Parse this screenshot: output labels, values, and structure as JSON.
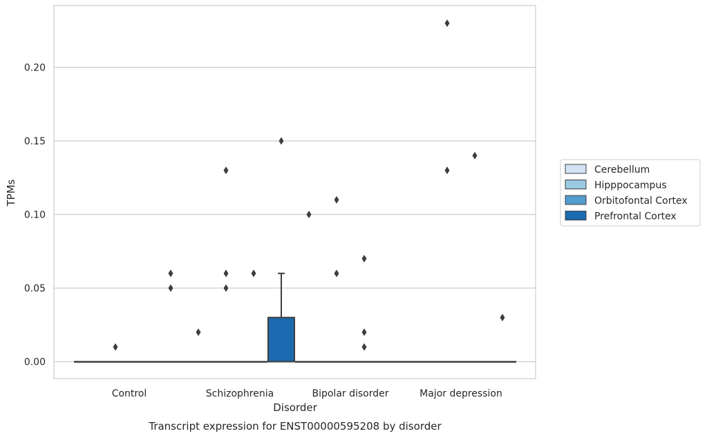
{
  "chart_data": {
    "type": "box",
    "title": "",
    "caption": "Transcript expression for ENST00000595208 by disorder",
    "xlabel": "Disorder",
    "ylabel": "TPMs",
    "ylim": [
      -0.011,
      0.2415
    ],
    "yticks": [
      "0.00",
      "0.05",
      "0.10",
      "0.15",
      "0.20"
    ],
    "grid": "horizontal",
    "legend_position": "right",
    "categories": [
      "Control",
      "Schizophrenia",
      "Bipolar disorder",
      "Major depression"
    ],
    "series": [
      {
        "name": "Cerebellum",
        "color": "#d2e3f3"
      },
      {
        "name": "Hipppocampus",
        "color": "#9ac8e0"
      },
      {
        "name": "Orbitofontal Cortex",
        "color": "#529dcc"
      },
      {
        "name": "Prefrontal Cortex",
        "color": "#1c6aaf"
      }
    ],
    "boxes": [
      {
        "category": "Control",
        "series": "Cerebellum",
        "q1": 0,
        "median": 0,
        "q3": 0,
        "whisker_low": 0,
        "whisker_high": 0,
        "outliers": []
      },
      {
        "category": "Control",
        "series": "Hipppocampus",
        "q1": 0,
        "median": 0,
        "q3": 0,
        "whisker_low": 0,
        "whisker_high": 0,
        "outliers": [
          0.01
        ]
      },
      {
        "category": "Control",
        "series": "Orbitofontal Cortex",
        "q1": 0,
        "median": 0,
        "q3": 0,
        "whisker_low": 0,
        "whisker_high": 0,
        "outliers": []
      },
      {
        "category": "Control",
        "series": "Prefrontal Cortex",
        "q1": 0,
        "median": 0,
        "q3": 0,
        "whisker_low": 0,
        "whisker_high": 0,
        "outliers": [
          0.05,
          0.06
        ]
      },
      {
        "category": "Schizophrenia",
        "series": "Cerebellum",
        "q1": 0,
        "median": 0,
        "q3": 0,
        "whisker_low": 0,
        "whisker_high": 0,
        "outliers": [
          0.02
        ]
      },
      {
        "category": "Schizophrenia",
        "series": "Hipppocampus",
        "q1": 0,
        "median": 0,
        "q3": 0,
        "whisker_low": 0,
        "whisker_high": 0,
        "outliers": [
          0.05,
          0.06,
          0.13
        ]
      },
      {
        "category": "Schizophrenia",
        "series": "Orbitofontal Cortex",
        "q1": 0,
        "median": 0,
        "q3": 0,
        "whisker_low": 0,
        "whisker_high": 0,
        "outliers": [
          0.06
        ]
      },
      {
        "category": "Schizophrenia",
        "series": "Prefrontal Cortex",
        "q1": 0,
        "median": 0,
        "q3": 0.03,
        "whisker_low": 0,
        "whisker_high": 0.06,
        "outliers": [
          0.15
        ]
      },
      {
        "category": "Bipolar disorder",
        "series": "Cerebellum",
        "q1": 0,
        "median": 0,
        "q3": 0,
        "whisker_low": 0,
        "whisker_high": 0,
        "outliers": [
          0.1
        ]
      },
      {
        "category": "Bipolar disorder",
        "series": "Hipppocampus",
        "q1": 0,
        "median": 0,
        "q3": 0,
        "whisker_low": 0,
        "whisker_high": 0,
        "outliers": [
          0.06,
          0.11
        ]
      },
      {
        "category": "Bipolar disorder",
        "series": "Orbitofontal Cortex",
        "q1": 0,
        "median": 0,
        "q3": 0,
        "whisker_low": 0,
        "whisker_high": 0,
        "outliers": [
          0.01,
          0.02,
          0.07
        ]
      },
      {
        "category": "Bipolar disorder",
        "series": "Prefrontal Cortex",
        "q1": 0,
        "median": 0,
        "q3": 0,
        "whisker_low": 0,
        "whisker_high": 0,
        "outliers": []
      },
      {
        "category": "Major depression",
        "series": "Cerebellum",
        "q1": 0,
        "median": 0,
        "q3": 0,
        "whisker_low": 0,
        "whisker_high": 0,
        "outliers": []
      },
      {
        "category": "Major depression",
        "series": "Hipppocampus",
        "q1": 0,
        "median": 0,
        "q3": 0,
        "whisker_low": 0,
        "whisker_high": 0,
        "outliers": [
          0.13,
          0.23
        ]
      },
      {
        "category": "Major depression",
        "series": "Orbitofontal Cortex",
        "q1": 0,
        "median": 0,
        "q3": 0,
        "whisker_low": 0,
        "whisker_high": 0,
        "outliers": [
          0.14
        ]
      },
      {
        "category": "Major depression",
        "series": "Prefrontal Cortex",
        "q1": 0,
        "median": 0,
        "q3": 0,
        "whisker_low": 0,
        "whisker_high": 0,
        "outliers": [
          0.03
        ]
      }
    ]
  }
}
